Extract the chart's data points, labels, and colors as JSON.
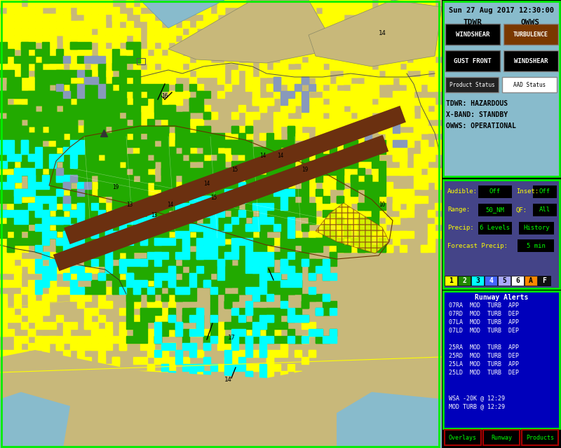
{
  "title": "Sun 27 Aug 2017 12:30:00",
  "bg_color": "#000000",
  "map_bg": "#c8b87a",
  "top_panel_bg": "#88bbcc",
  "mid_panel_bg": "#444488",
  "alert_panel_bg": "#0000bb",
  "panel_border": "#00ff00",
  "runway_color": "#6b3010",
  "water_color": "#88bbcc",
  "land_color": "#c8b87a",
  "colors": {
    "yellow": "#ffff00",
    "green": "#22aa00",
    "cyan": "#00ffff",
    "gray_blue": "#8899bb",
    "light_gray": "#aaaaaa"
  },
  "status_lines": [
    "TDWR: HAZARDOUS",
    "X-BAND: STANDBY",
    "OWWS: OPERATIONAL"
  ],
  "runway_alerts": [
    "07RA  MOD  TURB  APP",
    "07RD  MOD  TURB  DEP",
    "07LA  MOD  TURB  APP",
    "07LD  MOD  TURB  DEP",
    "",
    "25RA  MOD  TURB  APP",
    "25RD  MOD  TURB  DEP",
    "25LA  MOD  TURB  APP",
    "25LD  MOD  TURB  DEP",
    "",
    "",
    "WSA -20K @ 12:29",
    "MOD TURB @ 12:29"
  ],
  "level_colors": [
    "#ffff00",
    "#228800",
    "#00ffff",
    "#4466ff",
    "#aaaaff",
    "#ffffff",
    "#ff8800",
    "#111111"
  ],
  "level_labels": [
    "1",
    "2",
    "3",
    "4",
    "5",
    "6",
    "A",
    "F"
  ],
  "level_text_colors": [
    "#000000",
    "#ffffff",
    "#000000",
    "#ffffff",
    "#000000",
    "#000000",
    "#000000",
    "#ffffff"
  ]
}
